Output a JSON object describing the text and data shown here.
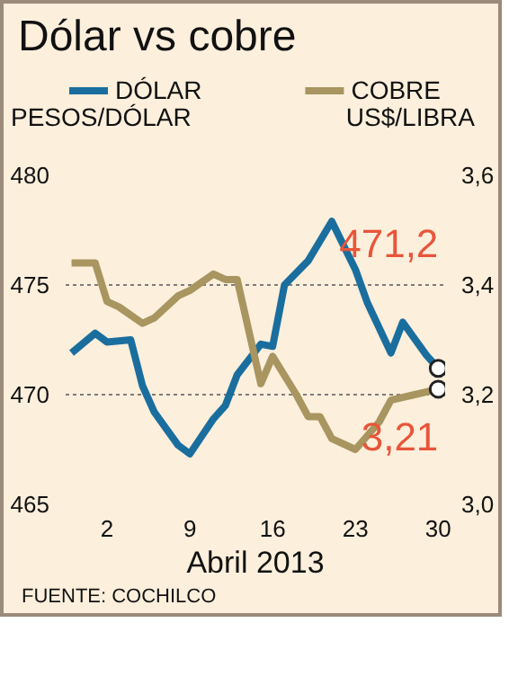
{
  "chart_data": {
    "type": "line",
    "title": "Dólar vs cobre",
    "xlabel": "Abril 2013",
    "ylabel": "PESOS/DÓLAR",
    "y2label": "US$/LIBRA",
    "series": [
      {
        "name": "DÓLAR",
        "color": "#1a6e9e",
        "x": [
          "2013-03-30",
          "2013-04-01",
          "2013-04-02",
          "2013-04-04",
          "2013-04-05",
          "2013-04-06",
          "2013-04-08",
          "2013-04-09",
          "2013-04-11",
          "2013-04-12",
          "2013-04-13",
          "2013-04-15",
          "2013-04-16",
          "2013-04-17",
          "2013-04-19",
          "2013-04-20",
          "2013-04-21",
          "2013-04-23",
          "2013-04-24",
          "2013-04-26",
          "2013-04-27",
          "2013-04-29",
          "2013-04-30"
        ],
        "values": [
          471.9,
          472.8,
          472.4,
          472.5,
          470.4,
          469.2,
          467.7,
          467.3,
          468.9,
          469.5,
          470.9,
          472.3,
          472.2,
          475.0,
          476.1,
          477.0,
          477.9,
          475.7,
          474.2,
          471.9,
          473.3,
          471.8,
          471.2
        ]
      },
      {
        "name": "COBRE",
        "color": "#a8955f",
        "axis": "y2",
        "x": [
          "2013-03-30",
          "2013-04-01",
          "2013-04-02",
          "2013-04-03",
          "2013-04-05",
          "2013-04-06",
          "2013-04-08",
          "2013-04-09",
          "2013-04-11",
          "2013-04-12",
          "2013-04-13",
          "2013-04-15",
          "2013-04-16",
          "2013-04-18",
          "2013-04-19",
          "2013-04-20",
          "2013-04-21",
          "2013-04-23",
          "2013-04-25",
          "2013-04-26",
          "2013-04-28",
          "2013-04-30"
        ],
        "values": [
          3.44,
          3.44,
          3.37,
          3.36,
          3.33,
          3.34,
          3.38,
          3.39,
          3.42,
          3.41,
          3.41,
          3.22,
          3.27,
          3.2,
          3.16,
          3.16,
          3.12,
          3.1,
          3.15,
          3.19,
          3.2,
          3.21
        ]
      }
    ],
    "xlim": [
      "2013-03-29T12:00",
      "2013-04-30T14:00"
    ],
    "xticks": [
      {
        "value": "2013-04-02",
        "label": "2"
      },
      {
        "value": "2013-04-09",
        "label": "9"
      },
      {
        "value": "2013-04-16",
        "label": "16"
      },
      {
        "value": "2013-04-23",
        "label": "23"
      },
      {
        "value": "2013-04-30",
        "label": "30"
      }
    ],
    "ylim": [
      465,
      480
    ],
    "yticks": [
      465,
      470,
      475,
      480
    ],
    "y2lim": [
      3.0,
      3.6
    ],
    "y2ticks": [
      {
        "value": 3.0,
        "label": "3,0"
      },
      {
        "value": 3.2,
        "label": "3,2"
      },
      {
        "value": 3.4,
        "label": "3,4"
      },
      {
        "value": 3.6,
        "label": "3,6"
      }
    ],
    "annotations": [
      {
        "text": "471,2",
        "x": "2013-04-30",
        "y": 471.2
      },
      "3,21",
      "FUENTE: COCHILCO"
    ],
    "grid": "y",
    "legend": "top",
    "marker": "none",
    "line_style": "solid"
  }
}
